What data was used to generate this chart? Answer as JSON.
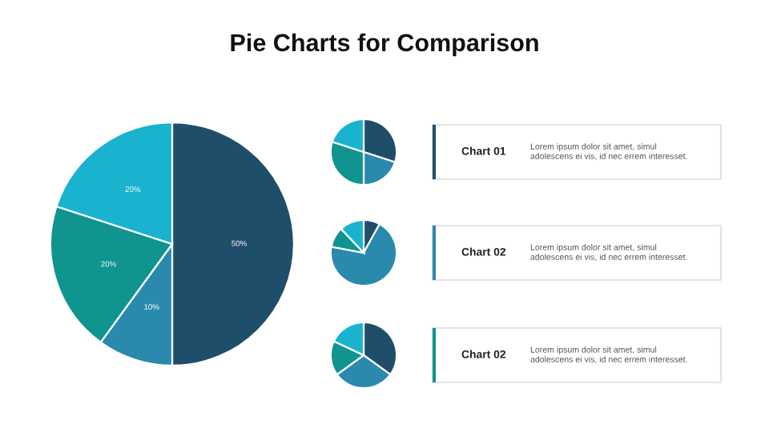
{
  "chart_data": [
    {
      "type": "pie",
      "title": "Pie Charts for Comparison",
      "categories": [
        null,
        null,
        null,
        null
      ],
      "values": [
        50,
        10,
        20,
        20
      ],
      "value_labels": [
        "50%",
        "10%",
        "20%",
        "20%"
      ],
      "colors": [
        "#1f4e6b",
        "#2a8aad",
        "#10948f",
        "#1ab3cf"
      ]
    },
    {
      "type": "pie",
      "title": "Chart 01",
      "annotations": [
        "Lorem ipsum dolor sit amet, simul\nadolescens ei vis, id nec errem interesset."
      ],
      "categories": [
        null,
        null,
        null,
        null
      ],
      "values": [
        30,
        20,
        30,
        20
      ],
      "colors": [
        "#1f4e6b",
        "#2a8aad",
        "#10948f",
        "#1ab3cf"
      ]
    },
    {
      "type": "pie",
      "title": "Chart 02",
      "annotations": [
        "Lorem ipsum dolor sit amet, simul\nadolescens ei vis, id nec errem interesset."
      ],
      "categories": [
        null,
        null,
        null,
        null
      ],
      "values": [
        8,
        70,
        10,
        12
      ],
      "colors": [
        "#1f4e6b",
        "#2a8aad",
        "#10948f",
        "#1ab3cf"
      ]
    },
    {
      "type": "pie",
      "title": "Chart 02",
      "annotations": [
        "Lorem ipsum dolor sit amet, simul\nadolescens ei vis, id nec errem interesset."
      ],
      "categories": [
        null,
        null,
        null,
        null
      ],
      "values": [
        35,
        30,
        17,
        18
      ],
      "colors": [
        "#1f4e6b",
        "#2a8aad",
        "#10948f",
        "#1ab3cf"
      ]
    }
  ]
}
